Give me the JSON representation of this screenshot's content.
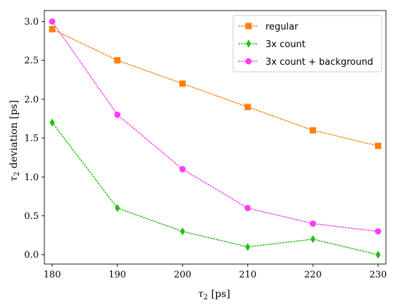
{
  "chart_data": {
    "type": "line",
    "xlabel_symbol": "τ",
    "xlabel_sub": "2",
    "xlabel_rest": " [ps]",
    "ylabel_symbol": "τ",
    "ylabel_sub": "2",
    "ylabel_rest": " deviation [ps]",
    "x": [
      180,
      190,
      200,
      210,
      220,
      230
    ],
    "xlim": [
      178.8,
      231.2
    ],
    "ylim": [
      -0.12,
      3.14
    ],
    "xticks": [
      "180",
      "190",
      "200",
      "210",
      "220",
      "230"
    ],
    "yticks": [
      "0.0",
      "0.5",
      "1.0",
      "1.5",
      "2.0",
      "2.5",
      "3.0"
    ],
    "grid": false,
    "legend_position": "top-right",
    "series": [
      {
        "name": "regular",
        "values": [
          2.9,
          2.5,
          2.2,
          1.9,
          1.6,
          1.4
        ],
        "color": "#ff7f0e",
        "marker": "square"
      },
      {
        "name": "3x count",
        "values": [
          1.7,
          0.6,
          0.3,
          0.1,
          0.2,
          0.0
        ],
        "color": "#22c00e",
        "marker": "diamond"
      },
      {
        "name": "3x count + background",
        "values": [
          3.0,
          1.8,
          1.1,
          0.6,
          0.4,
          0.3
        ],
        "color": "#ff3ef2",
        "marker": "circle"
      }
    ]
  }
}
